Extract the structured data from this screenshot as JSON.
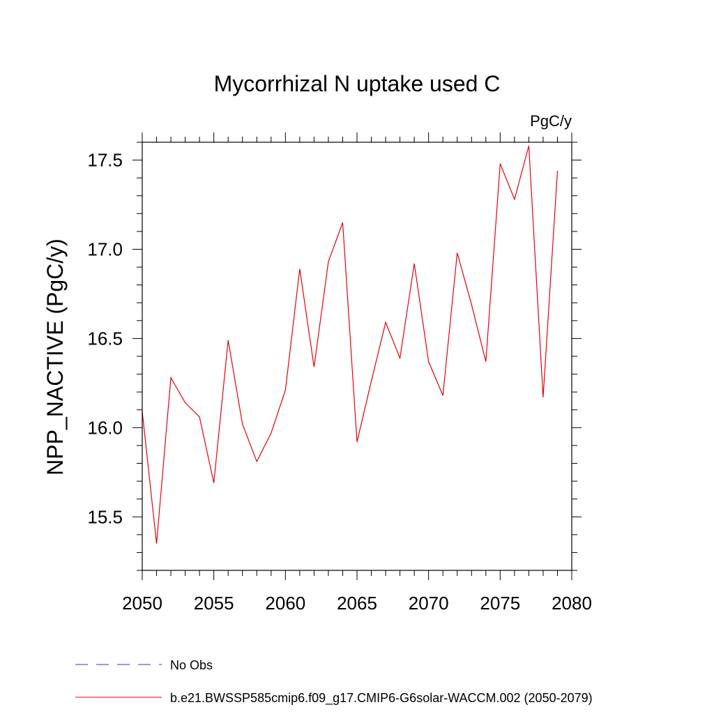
{
  "chart_data": {
    "type": "line",
    "title": "Mycorrhizal N uptake used C",
    "units_label": "PgC/y",
    "ylabel": "NPP_NACTIVE  (PgC/y)",
    "xlabel": "",
    "xlim": [
      2050,
      2080
    ],
    "ylim": [
      15.2,
      17.6
    ],
    "x_ticks": [
      2050,
      2055,
      2060,
      2065,
      2070,
      2075,
      2080
    ],
    "y_ticks": [
      15.5,
      16.0,
      16.5,
      17.0,
      17.5
    ],
    "x_tick_labels": [
      "2050",
      "2055",
      "2060",
      "2065",
      "2070",
      "2075",
      "2080"
    ],
    "y_tick_labels": [
      "15.5",
      "16.0",
      "16.5",
      "17.0",
      "17.5"
    ],
    "grid": false,
    "legend_position": "bottom",
    "series": [
      {
        "name": "b.e21.BWSSP585cmip6.f09_g17.CMIP6-G6solar-WACCM.002 (2050-2079)",
        "color": "#e8000b",
        "style": "solid",
        "x": [
          2050,
          2051,
          2052,
          2053,
          2054,
          2055,
          2056,
          2057,
          2058,
          2059,
          2060,
          2061,
          2062,
          2063,
          2064,
          2065,
          2066,
          2067,
          2068,
          2069,
          2070,
          2071,
          2072,
          2073,
          2074,
          2075,
          2076,
          2077,
          2078,
          2079
        ],
        "y": [
          16.09,
          15.35,
          16.28,
          16.14,
          16.06,
          15.69,
          16.49,
          16.02,
          15.81,
          15.97,
          16.21,
          16.89,
          16.34,
          16.93,
          17.15,
          15.92,
          16.26,
          16.59,
          16.39,
          16.92,
          16.37,
          16.18,
          16.98,
          16.69,
          16.37,
          17.48,
          17.28,
          17.58,
          16.17,
          17.44
        ]
      }
    ],
    "legend": [
      {
        "label": "No Obs",
        "color": "#3b2bd6",
        "style": "dashed"
      },
      {
        "label": "b.e21.BWSSP585cmip6.f09_g17.CMIP6-G6solar-WACCM.002 (2050-2079)",
        "color": "#e8000b",
        "style": "solid"
      }
    ]
  }
}
